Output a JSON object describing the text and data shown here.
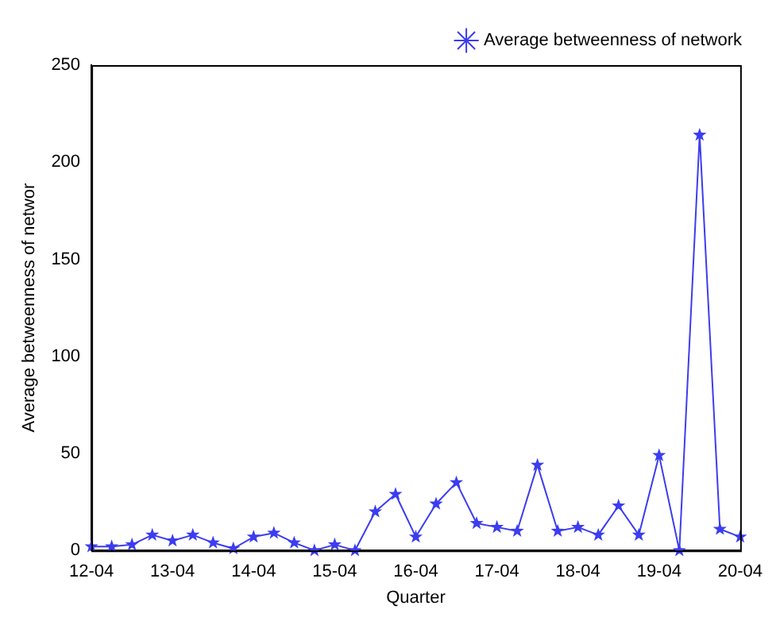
{
  "chart_data": {
    "type": "line",
    "xlabel": "Quarter",
    "ylabel": "Average betweenness of networ",
    "categories": [
      "12-04",
      null,
      null,
      null,
      "13-04",
      null,
      null,
      null,
      "14-04",
      null,
      null,
      null,
      "15-04",
      null,
      null,
      null,
      "16-04",
      null,
      null,
      null,
      "17-04",
      null,
      null,
      null,
      "18-04",
      null,
      null,
      null,
      "19-04",
      null,
      null,
      null,
      "20-04"
    ],
    "series": [
      {
        "name": "Average betweenness of network",
        "color": "#3c3cf0",
        "values": [
          2,
          2,
          3,
          8,
          5,
          8,
          4,
          1,
          7,
          9,
          4,
          0,
          3,
          0,
          20,
          29,
          7,
          24,
          35,
          14,
          12,
          10,
          44,
          10,
          12,
          8,
          23,
          8,
          49,
          0,
          214,
          11,
          7
        ]
      }
    ],
    "ylim": [
      0,
      250
    ],
    "yticks": [
      0,
      50,
      100,
      150,
      200,
      250
    ],
    "grid": false,
    "legend": "top right",
    "marker": "star",
    "line_style": "solid"
  }
}
